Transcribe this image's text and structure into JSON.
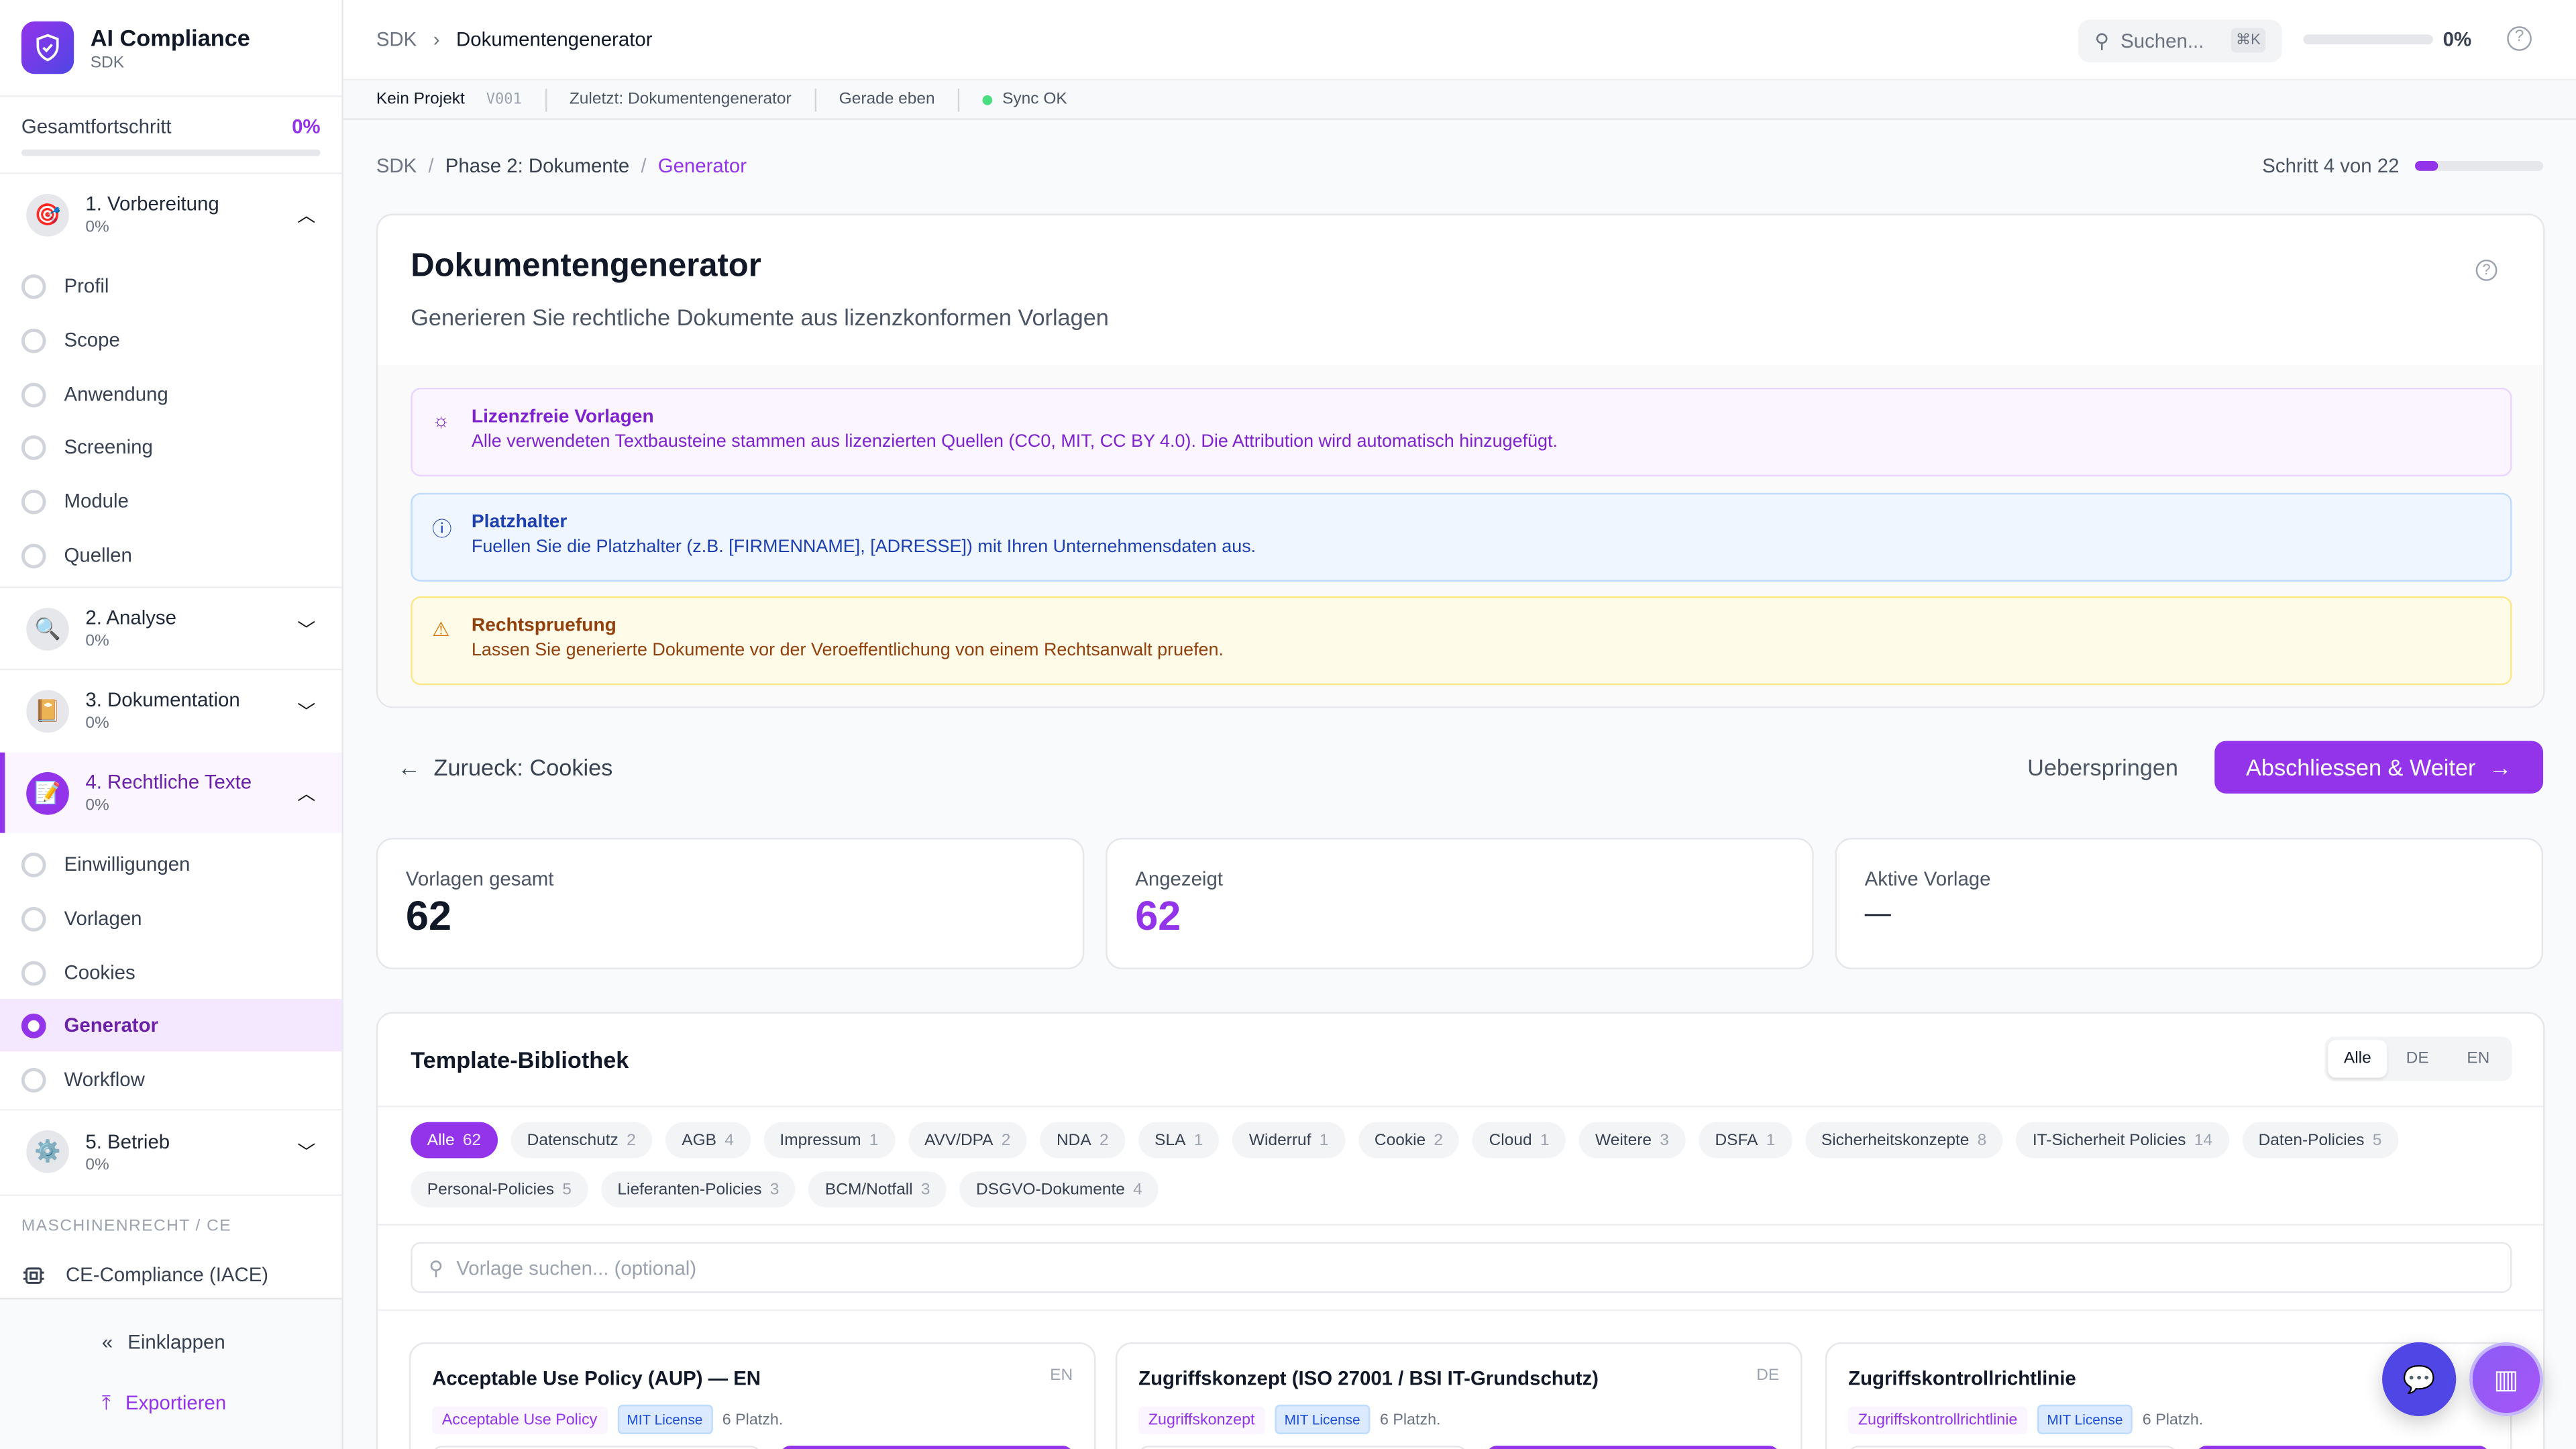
{
  "brand": {
    "title": "AI Compliance",
    "subtitle": "SDK"
  },
  "overall": {
    "label": "Gesamtfortschritt",
    "value": "0%",
    "fraction": 0
  },
  "groups": [
    {
      "title": "1. Vorbereitung",
      "progress": "0%",
      "icon": "target-icon",
      "expanded": true,
      "items": [
        "Profil",
        "Scope",
        "Anwendung",
        "Screening",
        "Module",
        "Quellen"
      ]
    },
    {
      "title": "2. Analyse",
      "progress": "0%",
      "icon": "magnifier-icon",
      "expanded": false
    },
    {
      "title": "3. Dokumentation",
      "progress": "0%",
      "icon": "notebook-icon",
      "expanded": false
    },
    {
      "title": "4. Rechtliche Texte",
      "progress": "0%",
      "icon": "memo-pencil-icon",
      "expanded": true,
      "items": [
        "Einwilligungen",
        "Vorlagen",
        "Cookies",
        "Generator",
        "Workflow"
      ],
      "selected": "Generator"
    },
    {
      "title": "5. Betrieb",
      "progress": "0%",
      "icon": "gear-icon",
      "expanded": false
    }
  ],
  "section": {
    "label": "MASCHINENRECHT / CE",
    "item": "CE-Compliance (IACE)"
  },
  "footer": {
    "collapse": "Einklappen",
    "export": "Exportieren"
  },
  "header": {
    "crumb_root": "SDK",
    "crumb_current": "Dokumentengenerator",
    "search_placeholder": "Suchen...",
    "shortcut": "⌘K",
    "progress": "0%"
  },
  "subbar": {
    "project": "Kein Projekt",
    "version": "V001",
    "last": "Zuletzt: Dokumentengenerator",
    "time": "Gerade eben",
    "sync": "Sync OK"
  },
  "breadcrumb": {
    "root": "SDK",
    "phase": "Phase 2: Dokumente",
    "current": "Generator",
    "step": "Schritt 4 von 22",
    "step_fraction": 0.18
  },
  "page": {
    "title": "Dokumentengenerator",
    "subtitle": "Generieren Sie rechtliche Dokumente aus lizenzkonformen Vorlagen"
  },
  "alerts": [
    {
      "title": "Lizenzfreie Vorlagen",
      "text": "Alle verwendeten Textbausteine stammen aus lizenzierten Quellen (CC0, MIT, CC BY 4.0). Die Attribution wird automatisch hinzugefügt."
    },
    {
      "title": "Platzhalter",
      "text": "Fuellen Sie die Platzhalter (z.B. [FIRMENNAME], [ADRESSE]) mit Ihren Unternehmensdaten aus."
    },
    {
      "title": "Rechtspruefung",
      "text": "Lassen Sie generierte Dokumente vor der Veroeffentlichung von einem Rechtsanwalt pruefen."
    }
  ],
  "nav": {
    "back": "Zurueck: Cookies",
    "skip": "Ueberspringen",
    "next": "Abschliessen & Weiter"
  },
  "stats": [
    {
      "label": "Vorlagen gesamt",
      "value": "62"
    },
    {
      "label": "Angezeigt",
      "value": "62"
    },
    {
      "label": "Aktive Vorlage",
      "value": "—"
    }
  ],
  "library": {
    "title": "Template-Bibliothek",
    "lang_options": [
      "Alle",
      "DE",
      "EN"
    ],
    "lang_selected": "Alle",
    "search_placeholder": "Vorlage suchen... (optional)",
    "chips": [
      [
        "Alle",
        "62"
      ],
      [
        "Datenschutz",
        "2"
      ],
      [
        "AGB",
        "4"
      ],
      [
        "Impressum",
        "1"
      ],
      [
        "AVV/DPA",
        "2"
      ],
      [
        "NDA",
        "2"
      ],
      [
        "SLA",
        "1"
      ],
      [
        "Widerruf",
        "1"
      ],
      [
        "Cookie",
        "2"
      ],
      [
        "Cloud",
        "1"
      ],
      [
        "Weitere",
        "3"
      ],
      [
        "DSFA",
        "1"
      ],
      [
        "Sicherheitskonzepte",
        "8"
      ],
      [
        "IT-Sicherheit Policies",
        "14"
      ],
      [
        "Daten-Policies",
        "5"
      ],
      [
        "Personal-Policies",
        "5"
      ],
      [
        "Lieferanten-Policies",
        "3"
      ],
      [
        "BCM/Notfall",
        "3"
      ],
      [
        "DSGVO-Dokumente",
        "4"
      ]
    ],
    "templates": [
      {
        "title": "Acceptable Use Policy (AUP) — EN",
        "lang": "EN",
        "type": "Acceptable Use Policy",
        "license": "MIT License",
        "placeholders": "6 Platzh."
      },
      {
        "title": "Zugriffskonzept (ISO 27001 / BSI IT-Grundschutz)",
        "lang": "DE",
        "type": "Zugriffskonzept",
        "license": "MIT License",
        "placeholders": "6 Platzh."
      },
      {
        "title": "Zugriffskontrollrichtlinie",
        "lang": "",
        "type": "Zugriffskontrollrichtlinie",
        "license": "MIT License",
        "placeholders": "6 Platzh."
      }
    ]
  },
  "colors": {
    "accent": "#9333ea",
    "indigo": "#4f46e5"
  }
}
